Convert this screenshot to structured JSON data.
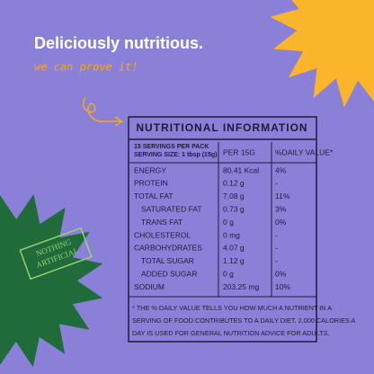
{
  "header": {
    "title": "Deliciously nutritious.",
    "subtitle": "we can prove it!"
  },
  "badge": {
    "lines": [
      "NOTHING",
      "ARTIFICIAL"
    ]
  },
  "table": {
    "title": "NUTRITIONAL INFORMATION",
    "servings": "15 SERVINGS PER PACK",
    "serving_size": "SERVING SIZE: 1 tbsp (15g)",
    "columns": [
      "PER 15G",
      "%DAILY VALUE*"
    ],
    "rows": [
      [
        "ENERGY",
        "80.41 Kcal",
        "4%"
      ],
      [
        "PROTEIN",
        "0.12 g",
        "-"
      ],
      [
        "TOTAL FAT",
        "7.08 g",
        "11%"
      ],
      [
        "SATURATED FAT",
        "0.73 g",
        "3%"
      ],
      [
        "TRANS FAT",
        "0 g",
        "0%"
      ],
      [
        "CHOLESTEROL",
        "0 mg",
        "-"
      ],
      [
        "CARBOHYDRATES",
        "4.07 g",
        "-"
      ],
      [
        "TOTAL SUGAR",
        "1.12 g",
        "-"
      ],
      [
        "ADDED SUGAR",
        "0 g",
        "0%"
      ],
      [
        "SODIUM",
        "203.25 mg",
        "10%"
      ]
    ],
    "footnote": [
      "* THE % DAILY VALUE TELLS YOU HOW MUCH A NUTRIENT IN A",
      "SERVING OF FOOD CONTRIBUTES TO A DAILY DIET. 2,000 CALORIES A",
      "DAY IS USED FOR GENERAL NUTRITION ADVICE FOR ADULTS."
    ]
  }
}
